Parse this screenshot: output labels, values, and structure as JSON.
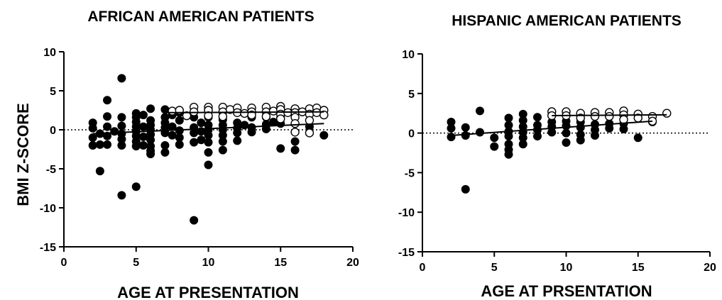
{
  "y_axis_label": "BMI Z-SCORE",
  "chart_data": [
    {
      "type": "scatter",
      "title": "AFRICAN AMERICAN PATIENTS",
      "xlabel": "AGE AT PRESENTATION",
      "ylabel": "BMI Z-SCORE",
      "xlim": [
        0,
        20
      ],
      "ylim": [
        -15,
        10
      ],
      "x_ticks": [
        "0",
        "5",
        "10",
        "15",
        "20"
      ],
      "y_ticks": [
        "10",
        "5",
        "0",
        "-5",
        "-10",
        "-15"
      ],
      "reference_line_y": 0,
      "series": [
        {
          "marker": "filled",
          "color": "#000000",
          "points": [
            [
              2,
              0.9
            ],
            [
              2,
              0.2
            ],
            [
              2,
              -1.0
            ],
            [
              2,
              -2.0
            ],
            [
              2.5,
              -1.9
            ],
            [
              2.5,
              -5.3
            ],
            [
              2.5,
              -0.5
            ],
            [
              3,
              3.8
            ],
            [
              3,
              1.7
            ],
            [
              3,
              0.4
            ],
            [
              3,
              -0.8
            ],
            [
              3,
              -1.9
            ],
            [
              3.5,
              -0.2
            ],
            [
              4,
              6.6
            ],
            [
              4,
              1.6
            ],
            [
              4,
              0.5
            ],
            [
              4,
              -0.5
            ],
            [
              4,
              -1.2
            ],
            [
              4,
              -2.0
            ],
            [
              4,
              -8.4
            ],
            [
              5,
              2.1
            ],
            [
              5,
              1.6
            ],
            [
              5,
              1.0
            ],
            [
              5,
              0.4
            ],
            [
              5,
              -0.2
            ],
            [
              5,
              -0.8
            ],
            [
              5,
              -1.5
            ],
            [
              5,
              -2.1
            ],
            [
              5,
              -7.3
            ],
            [
              5.5,
              1.9
            ],
            [
              5.5,
              0.4
            ],
            [
              5.5,
              -0.9
            ],
            [
              5.5,
              -2.0
            ],
            [
              6,
              2.7
            ],
            [
              6,
              1.2
            ],
            [
              6,
              0.6
            ],
            [
              6,
              0
            ],
            [
              6,
              -0.6
            ],
            [
              6,
              -1.3
            ],
            [
              6,
              -2.1
            ],
            [
              6,
              -2.7
            ],
            [
              6,
              -3.1
            ],
            [
              7,
              2.6
            ],
            [
              7,
              1.6
            ],
            [
              7,
              0.9
            ],
            [
              7,
              0.3
            ],
            [
              7,
              -0.4
            ],
            [
              7,
              -2.0
            ],
            [
              7,
              -2.9
            ],
            [
              7.5,
              1.9
            ],
            [
              7.5,
              0.4
            ],
            [
              7.5,
              -0.7
            ],
            [
              8,
              2.2
            ],
            [
              8,
              1.2
            ],
            [
              8,
              -0.1
            ],
            [
              8,
              -1.0
            ],
            [
              8,
              -1.9
            ],
            [
              9,
              1.6
            ],
            [
              9,
              0.3
            ],
            [
              9,
              -0.4
            ],
            [
              9,
              -1.6
            ],
            [
              9,
              -11.6
            ],
            [
              9.5,
              0.9
            ],
            [
              9.5,
              -0.2
            ],
            [
              9.5,
              -1.3
            ],
            [
              10,
              1.6
            ],
            [
              10,
              0.6
            ],
            [
              10,
              0
            ],
            [
              10,
              -0.7
            ],
            [
              10,
              -1.6
            ],
            [
              10,
              -2.9
            ],
            [
              10,
              -4.5
            ],
            [
              11,
              1.3
            ],
            [
              11,
              0.6
            ],
            [
              11,
              0
            ],
            [
              11,
              -0.7
            ],
            [
              11,
              -1.5
            ],
            [
              11,
              -2.6
            ],
            [
              12,
              0.9
            ],
            [
              12,
              0.2
            ],
            [
              12,
              -0.4
            ],
            [
              12,
              -1.4
            ],
            [
              12.5,
              0.6
            ],
            [
              13,
              1.6
            ],
            [
              13,
              0.3
            ],
            [
              13,
              -0.3
            ],
            [
              14,
              1.6
            ],
            [
              14,
              0.7
            ],
            [
              14,
              0.1
            ],
            [
              14.5,
              1.0
            ],
            [
              15,
              1.6
            ],
            [
              15,
              0.8
            ],
            [
              15,
              -2.4
            ],
            [
              16,
              0.8
            ],
            [
              16,
              -1.5
            ],
            [
              16,
              -2.6
            ],
            [
              17,
              0.4
            ],
            [
              18,
              -0.7
            ]
          ]
        },
        {
          "marker": "open",
          "color": "#000000",
          "points": [
            [
              7.5,
              2.4
            ],
            [
              8,
              2.5
            ],
            [
              8.5,
              1.8
            ],
            [
              9,
              2.9
            ],
            [
              9,
              2.3
            ],
            [
              10,
              2.9
            ],
            [
              10,
              2.5
            ],
            [
              10,
              1.8
            ],
            [
              11,
              2.9
            ],
            [
              11,
              2.3
            ],
            [
              11,
              1.7
            ],
            [
              11.5,
              2.6
            ],
            [
              12,
              2.8
            ],
            [
              12,
              2.2
            ],
            [
              12.5,
              2.1
            ],
            [
              13,
              2.8
            ],
            [
              13,
              2.3
            ],
            [
              13,
              1.9
            ],
            [
              14,
              2.9
            ],
            [
              14,
              2.3
            ],
            [
              14,
              1.7
            ],
            [
              14.5,
              2.4
            ],
            [
              15,
              3.0
            ],
            [
              15,
              2.6
            ],
            [
              15,
              2.0
            ],
            [
              15,
              1.4
            ],
            [
              15.5,
              2.2
            ],
            [
              16,
              2.7
            ],
            [
              16,
              2.2
            ],
            [
              16,
              1.6
            ],
            [
              16,
              0.8
            ],
            [
              16,
              -0.3
            ],
            [
              16.5,
              2.3
            ],
            [
              17,
              2.7
            ],
            [
              17,
              2.0
            ],
            [
              17,
              1.2
            ],
            [
              17,
              -0.4
            ],
            [
              17.5,
              2.8
            ],
            [
              17.5,
              2.2
            ],
            [
              18,
              2.5
            ],
            [
              18,
              1.9
            ]
          ]
        }
      ],
      "trend_lines": [
        {
          "from": [
            2,
            -0.5
          ],
          "to": [
            18,
            0.8
          ]
        },
        {
          "from": [
            7,
            2.2
          ],
          "to": [
            18,
            2.3
          ]
        }
      ]
    },
    {
      "type": "scatter",
      "title": "HISPANIC AMERICAN PATIENTS",
      "xlabel": "AGE AT PRSENTATION",
      "ylabel": "",
      "xlim": [
        0,
        20
      ],
      "ylim": [
        -15,
        10
      ],
      "x_ticks": [
        "0",
        "5",
        "10",
        "15",
        "20"
      ],
      "y_ticks": [
        "10",
        "5",
        "0",
        "-5",
        "-10",
        "-15"
      ],
      "reference_line_y": 0,
      "series": [
        {
          "marker": "filled",
          "color": "#000000",
          "points": [
            [
              2,
              1.4
            ],
            [
              2,
              0.6
            ],
            [
              2,
              -0.5
            ],
            [
              3,
              0.7
            ],
            [
              3,
              -0.3
            ],
            [
              3,
              -7.1
            ],
            [
              4,
              2.8
            ],
            [
              4,
              0.1
            ],
            [
              5,
              -0.6
            ],
            [
              5,
              -1.7
            ],
            [
              6,
              1.9
            ],
            [
              6,
              1.0
            ],
            [
              6,
              0.2
            ],
            [
              6,
              -0.4
            ],
            [
              6,
              -1.4
            ],
            [
              6,
              -2.1
            ],
            [
              6,
              -2.7
            ],
            [
              7,
              2.4
            ],
            [
              7,
              1.6
            ],
            [
              7,
              0.8
            ],
            [
              7,
              0.1
            ],
            [
              7,
              -0.6
            ],
            [
              7,
              -1.4
            ],
            [
              8,
              2.0
            ],
            [
              8,
              1.0
            ],
            [
              8,
              0.4
            ],
            [
              8,
              -0.4
            ],
            [
              9,
              1.4
            ],
            [
              9,
              0.8
            ],
            [
              9,
              0.1
            ],
            [
              10,
              1.5
            ],
            [
              10,
              0.9
            ],
            [
              10,
              0
            ],
            [
              10,
              -1.2
            ],
            [
              11,
              1.4
            ],
            [
              11,
              0.7
            ],
            [
              11,
              -0.2
            ],
            [
              11,
              -0.9
            ],
            [
              12,
              1.1
            ],
            [
              12,
              0.4
            ],
            [
              12,
              -0.3
            ],
            [
              13,
              1.2
            ],
            [
              13,
              0.6
            ],
            [
              14,
              1.2
            ],
            [
              14,
              0.5
            ],
            [
              15,
              -0.6
            ],
            [
              16,
              1.4
            ]
          ]
        },
        {
          "marker": "open",
          "color": "#000000",
          "points": [
            [
              9,
              2.7
            ],
            [
              9,
              2.2
            ],
            [
              10,
              2.7
            ],
            [
              10,
              2.2
            ],
            [
              11,
              2.5
            ],
            [
              11,
              1.9
            ],
            [
              12,
              2.6
            ],
            [
              12,
              2.1
            ],
            [
              13,
              2.6
            ],
            [
              13,
              2.1
            ],
            [
              14,
              2.8
            ],
            [
              14,
              2.3
            ],
            [
              14,
              1.7
            ],
            [
              15,
              2.4
            ],
            [
              15,
              1.9
            ],
            [
              16,
              2.1
            ],
            [
              16,
              1.5
            ],
            [
              17,
              2.5
            ]
          ]
        }
      ],
      "trend_lines": [
        {
          "from": [
            2,
            -0.3
          ],
          "to": [
            16,
            1.5
          ]
        },
        {
          "from": [
            9,
            2.2
          ],
          "to": [
            17,
            2.3
          ]
        }
      ]
    }
  ]
}
